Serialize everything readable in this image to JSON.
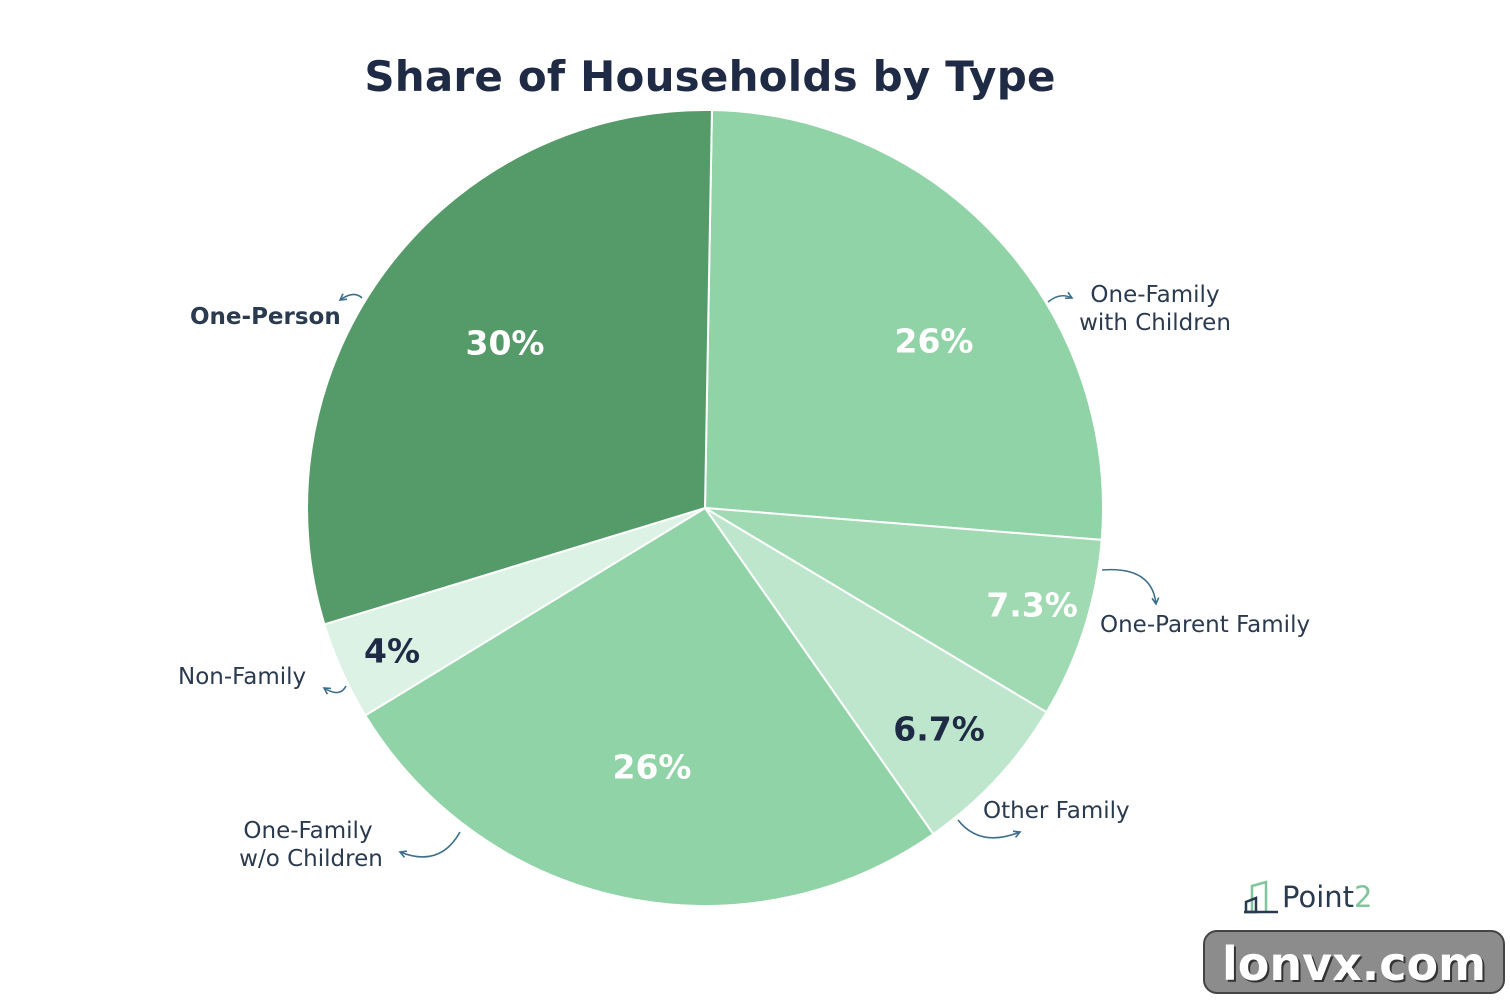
{
  "chart_data": {
    "type": "pie",
    "title": "Share of Households by Type",
    "slices": [
      {
        "label": "One-Family with Children",
        "value": 26,
        "value_label": "26%",
        "color": "#8fd3a6",
        "value_text_color": "#ffffff",
        "label_lines": [
          "One-Family",
          "with Children"
        ]
      },
      {
        "label": "One-Parent Family",
        "value": 7.3,
        "value_label": "7.3%",
        "color": "#9fdab3",
        "value_text_color": "#ffffff",
        "label_lines": [
          "One-Parent Family"
        ]
      },
      {
        "label": "Other Family",
        "value": 6.7,
        "value_label": "6.7%",
        "color": "#bde6cd",
        "value_text_color": "#1f2a44",
        "label_lines": [
          "Other Family"
        ]
      },
      {
        "label": "One-Family w/o Children",
        "value": 26,
        "value_label": "26%",
        "color": "#8fd3a6",
        "value_text_color": "#ffffff",
        "label_lines": [
          "One-Family",
          "w/o Children"
        ]
      },
      {
        "label": "Non-Family",
        "value": 4,
        "value_label": "4%",
        "color": "#dcf2e4",
        "value_text_color": "#1f2a44",
        "label_lines": [
          "Non-Family"
        ]
      },
      {
        "label": "One-Person",
        "value": 30,
        "value_label": "30%",
        "color": "#559b69",
        "value_text_color": "#ffffff",
        "label_lines": [
          "One-Person"
        ]
      }
    ]
  },
  "brand": {
    "name_main": "Point",
    "name_accent": "2",
    "icon": "building-logo-icon"
  },
  "watermark": {
    "text": "lonvx.com"
  }
}
